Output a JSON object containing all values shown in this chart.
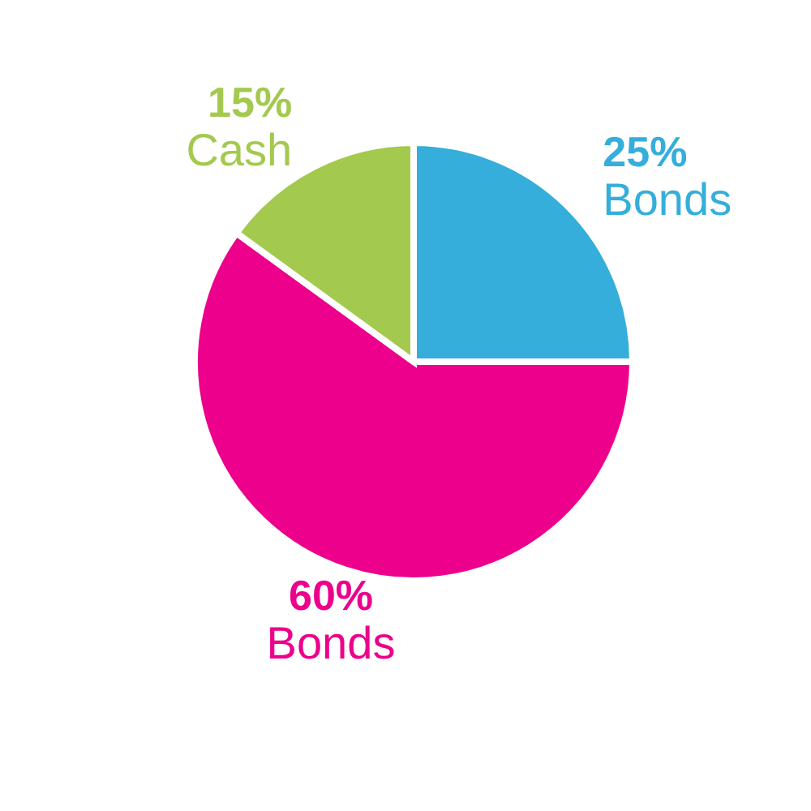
{
  "chart_data": {
    "type": "pie",
    "categories": [
      "Bonds",
      "Bonds",
      "Cash"
    ],
    "values": [
      25,
      60,
      15
    ],
    "value_labels": [
      "25%",
      "60%",
      "15%"
    ],
    "colors": [
      "#35aedb",
      "#ec008c",
      "#a3c94e"
    ]
  }
}
